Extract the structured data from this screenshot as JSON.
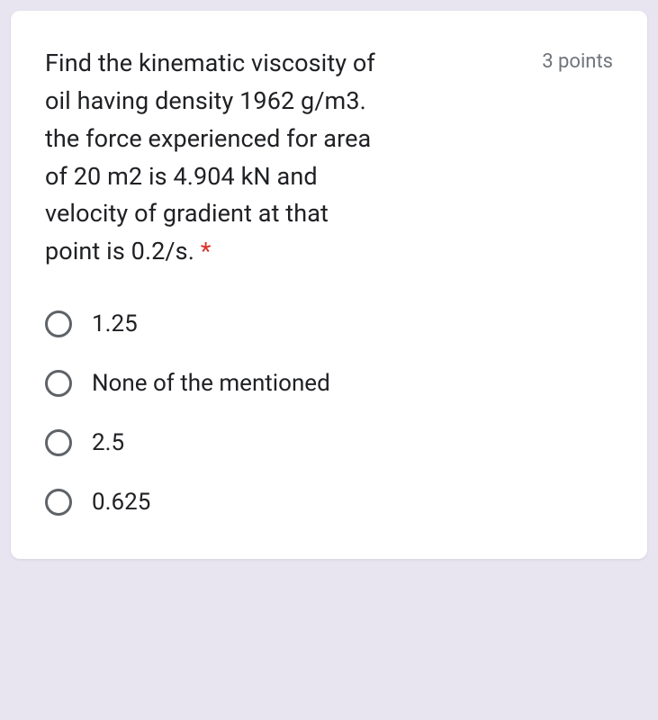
{
  "card": {
    "background_color": "#ffffff",
    "border_radius": 10
  },
  "page_background_color": "#e8e5f0",
  "question": {
    "line1": "Find the kinematic viscosity of",
    "line2": "oil having density 1962 g/m3.",
    "line3": "the force experienced for area",
    "line4": "of 20 m2 is 4.904 kN and",
    "line5": "velocity of gradient at that",
    "line6": "point is 0.2/s.",
    "required_marker": "*",
    "required_color": "#d93025",
    "points_label": "3 points",
    "points_color": "#70757a",
    "text_color": "#202124",
    "font_size": 27
  },
  "options": [
    {
      "label": "1.25",
      "selected": false
    },
    {
      "label": "None of the mentioned",
      "selected": false
    },
    {
      "label": "2.5",
      "selected": false
    },
    {
      "label": "0.625",
      "selected": false
    }
  ],
  "radio_style": {
    "border_color": "#5f6368",
    "border_width": 3,
    "size": 30
  }
}
